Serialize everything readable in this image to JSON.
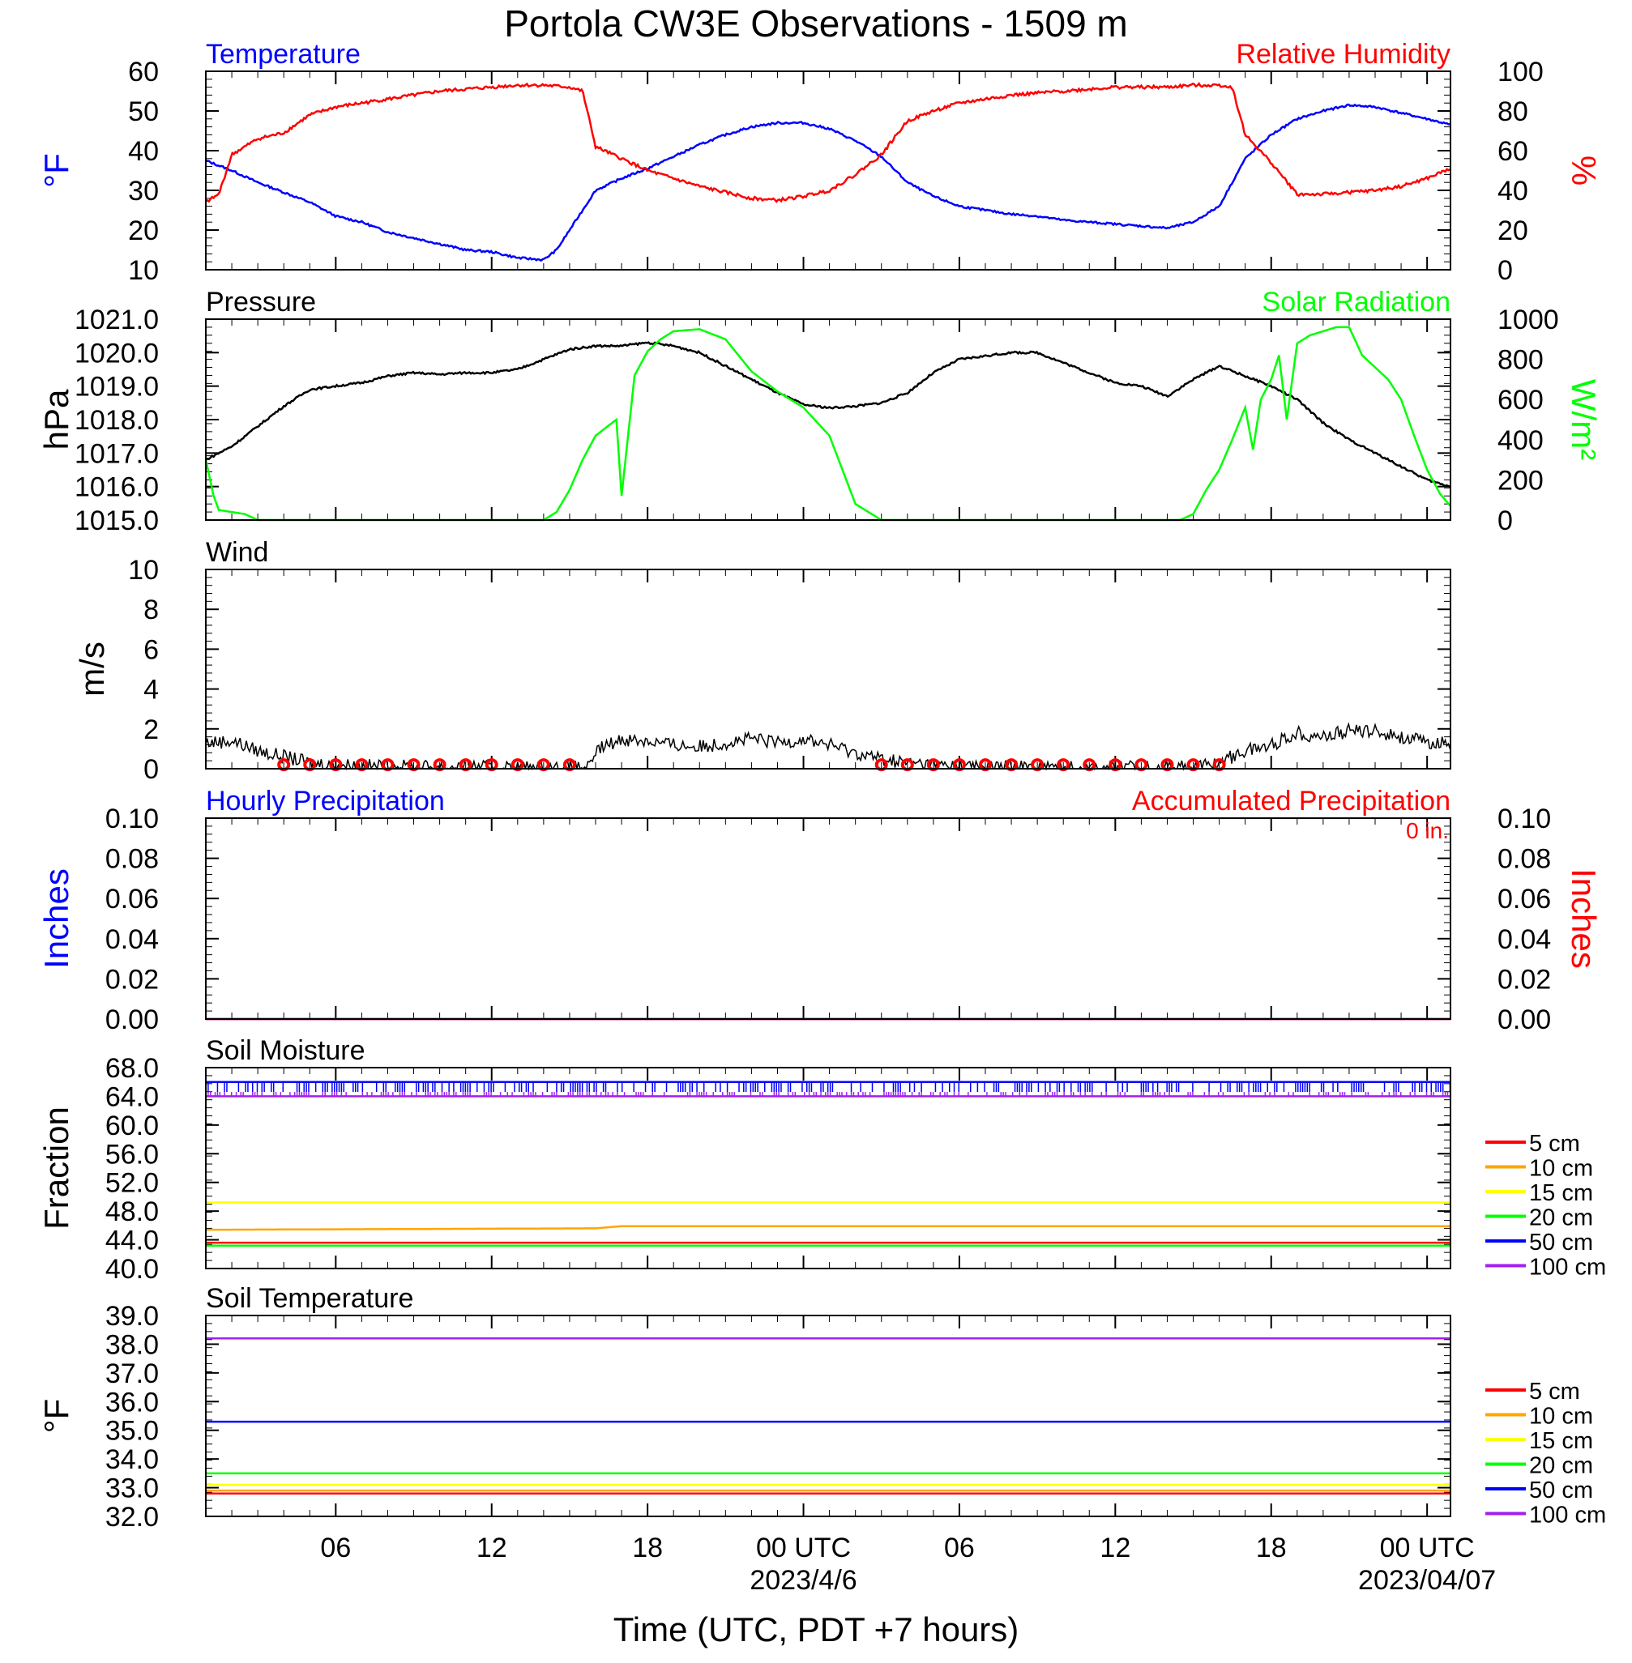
{
  "title": "Portola CW3E Observations - 1509 m",
  "xlabel": "Time (UTC, PDT +7 hours)",
  "x_ticks": [
    {
      "hour": 6,
      "label": "06"
    },
    {
      "hour": 12,
      "label": "12"
    },
    {
      "hour": 18,
      "label": "18"
    },
    {
      "hour": 24,
      "label": "00 UTC",
      "date": "2023/4/6"
    },
    {
      "hour": 30,
      "label": "06"
    },
    {
      "hour": 36,
      "label": "12"
    },
    {
      "hour": 42,
      "label": "18"
    },
    {
      "hour": 48,
      "label": "00 UTC",
      "date": "2023/04/07"
    }
  ],
  "x_range_hours": [
    1,
    48.9
  ],
  "chart_data": [
    {
      "type": "line",
      "panel": "temperature-humidity",
      "left_title": "Temperature",
      "right_title": "Relative Humidity",
      "ylabel_left": "°F",
      "ylabel_right": "%",
      "ylim_left": [
        10,
        60
      ],
      "ylim_right": [
        0,
        100
      ],
      "yticks_left": [
        "10",
        "20",
        "30",
        "40",
        "50",
        "60"
      ],
      "yticks_right": [
        "0",
        "20",
        "40",
        "60",
        "80",
        "100"
      ],
      "series": [
        {
          "name": "Temperature",
          "axis": "left",
          "color": "#0000ff",
          "x": [
            1,
            2,
            3,
            4,
            5,
            6,
            7,
            8,
            9,
            10,
            11,
            12,
            13,
            14,
            14.5,
            15,
            16,
            17,
            18,
            19,
            20,
            21,
            22,
            23,
            24,
            25,
            26,
            27,
            28,
            29,
            30,
            31,
            32,
            33,
            34,
            35,
            36,
            37,
            38,
            39,
            40,
            41,
            42,
            43,
            44,
            45,
            46,
            47,
            48,
            48.9
          ],
          "values": [
            37.5,
            35,
            32,
            29.5,
            27,
            23.5,
            22,
            19.5,
            18,
            16.5,
            15,
            14.5,
            13,
            12.5,
            15,
            20,
            30,
            33,
            35.5,
            38.5,
            41.5,
            44,
            46,
            47,
            47,
            45.5,
            42.5,
            38.5,
            32,
            28.5,
            26,
            25,
            24,
            23.5,
            22.5,
            22,
            21.5,
            21,
            20.5,
            22,
            26,
            38,
            44,
            48,
            50,
            51.5,
            51,
            49.5,
            48,
            46.5
          ]
        },
        {
          "name": "Relative Humidity",
          "axis": "right",
          "color": "#ff0000",
          "x": [
            1,
            1.5,
            2,
            3,
            4,
            5,
            6,
            7,
            8,
            9,
            10,
            11,
            12,
            13,
            14,
            15,
            15.5,
            16,
            17,
            18,
            19,
            20,
            21,
            22,
            23,
            24,
            25,
            26,
            27,
            28,
            29,
            30,
            31,
            32,
            33,
            34,
            35,
            36,
            37,
            38,
            39,
            40,
            40.5,
            41,
            42,
            43,
            44,
            45,
            46,
            47,
            48,
            48.9
          ],
          "values": [
            34,
            38,
            58,
            66,
            69,
            78,
            82,
            84,
            86,
            88,
            90,
            91,
            92,
            93,
            93,
            92,
            90,
            62,
            56,
            50,
            46,
            42,
            39,
            36,
            35,
            37,
            40,
            48,
            58,
            75,
            80,
            84,
            86,
            88,
            89,
            90,
            91,
            92,
            92,
            92,
            93,
            93,
            92,
            68,
            54,
            38,
            38,
            39,
            40,
            42,
            46,
            51
          ]
        }
      ]
    },
    {
      "type": "line",
      "panel": "pressure-solar",
      "left_title": "Pressure",
      "right_title": "Solar Radiation",
      "ylabel_left": "hPa",
      "ylabel_right": "W/m²",
      "ylim_left": [
        1015.0,
        1021.0
      ],
      "ylim_right": [
        0,
        1000
      ],
      "yticks_left": [
        "1015.0",
        "1016.0",
        "1017.0",
        "1018.0",
        "1019.0",
        "1020.0",
        "1021.0"
      ],
      "yticks_right": [
        "0",
        "200",
        "400",
        "600",
        "800",
        "1000"
      ],
      "series": [
        {
          "name": "Pressure",
          "axis": "left",
          "color": "#000000",
          "x": [
            1,
            2,
            3,
            4,
            5,
            6,
            7,
            8,
            9,
            10,
            11,
            12,
            13,
            14,
            15,
            16,
            17,
            18,
            19,
            20,
            21,
            22,
            23,
            24,
            25,
            26,
            27,
            28,
            29,
            30,
            31,
            32,
            33,
            34,
            35,
            36,
            37,
            38,
            39,
            40,
            41,
            42,
            43,
            44,
            45,
            46,
            47,
            48,
            48.9
          ],
          "values": [
            1016.8,
            1017.2,
            1017.8,
            1018.4,
            1018.9,
            1019.0,
            1019.1,
            1019.3,
            1019.4,
            1019.35,
            1019.4,
            1019.4,
            1019.5,
            1019.8,
            1020.1,
            1020.2,
            1020.2,
            1020.3,
            1020.2,
            1020.0,
            1019.6,
            1019.2,
            1018.8,
            1018.45,
            1018.35,
            1018.4,
            1018.5,
            1018.8,
            1019.4,
            1019.8,
            1019.9,
            1020.0,
            1020.0,
            1019.7,
            1019.4,
            1019.1,
            1019.0,
            1018.7,
            1019.2,
            1019.6,
            1019.3,
            1019.0,
            1018.6,
            1017.9,
            1017.4,
            1017.0,
            1016.6,
            1016.2,
            1016.0
          ]
        },
        {
          "name": "Solar Radiation",
          "axis": "right",
          "color": "#00ff00",
          "x": [
            1,
            1.3,
            1.5,
            2,
            2.5,
            3,
            14,
            14.5,
            15,
            15.5,
            16,
            16.8,
            17,
            17.5,
            18,
            18.5,
            19,
            20,
            21,
            21.5,
            22,
            23,
            24,
            25,
            25.5,
            26,
            26.5,
            27,
            38,
            38.5,
            39,
            39.5,
            40,
            40.5,
            41,
            41.3,
            41.6,
            42,
            42.3,
            42.6,
            43,
            43.5,
            44,
            44.5,
            45,
            45.5,
            46,
            46.5,
            47,
            47.5,
            48,
            48.5,
            48.9
          ],
          "values": [
            300,
            120,
            50,
            40,
            30,
            0,
            0,
            40,
            150,
            300,
            420,
            500,
            120,
            720,
            840,
            900,
            940,
            950,
            900,
            820,
            740,
            640,
            560,
            420,
            250,
            80,
            40,
            0,
            0,
            0,
            30,
            150,
            250,
            400,
            560,
            350,
            600,
            700,
            820,
            500,
            880,
            920,
            940,
            960,
            960,
            820,
            760,
            700,
            600,
            420,
            250,
            130,
            70
          ]
        }
      ]
    },
    {
      "type": "line",
      "panel": "wind",
      "left_title": "Wind",
      "ylabel_left": "m/s",
      "ylim_left": [
        0,
        10
      ],
      "yticks_left": [
        "0",
        "2",
        "4",
        "6",
        "8",
        "10"
      ],
      "series": [
        {
          "name": "Wind",
          "axis": "left",
          "color": "#000000",
          "x": [
            1,
            2,
            3,
            4,
            5,
            6,
            7,
            8,
            9,
            10,
            11,
            12,
            13,
            14,
            15,
            15.9,
            16,
            17,
            18,
            19,
            20,
            21,
            22,
            23,
            24,
            25,
            26,
            27,
            28,
            29,
            30,
            31,
            32,
            33,
            34,
            35,
            36,
            37,
            38,
            39,
            40,
            40.5,
            41,
            42,
            43,
            44,
            45,
            46,
            47,
            48,
            48.9
          ],
          "values": [
            1.3,
            1.4,
            0.9,
            0.6,
            0.3,
            0.2,
            0.15,
            0.1,
            0.1,
            0.1,
            0.1,
            0.1,
            0.05,
            0.05,
            0.05,
            0.1,
            0.9,
            1.5,
            1.4,
            1.2,
            1.1,
            1.3,
            1.5,
            1.3,
            1.5,
            1.2,
            0.8,
            0.5,
            0.3,
            0.2,
            0.15,
            0.1,
            0.1,
            0.1,
            0.05,
            0.05,
            0.05,
            0.05,
            0.05,
            0.1,
            0.3,
            0.6,
            0.9,
            1.2,
            1.8,
            1.6,
            1.9,
            1.9,
            1.6,
            1.3,
            1.3
          ]
        }
      ]
    },
    {
      "type": "line",
      "panel": "precipitation",
      "left_title": "Hourly Precipitation",
      "right_title": "Accumulated Precipitation",
      "total_label": "0 in.",
      "ylabel_left": "Inches",
      "ylabel_right": "Inches",
      "ylim_left": [
        0,
        0.1
      ],
      "ylim_right": [
        0,
        0.1
      ],
      "yticks_left": [
        "0.00",
        "0.02",
        "0.04",
        "0.06",
        "0.08",
        "0.10"
      ],
      "yticks_right": [
        "0.00",
        "0.02",
        "0.04",
        "0.06",
        "0.08",
        "0.10"
      ],
      "series": [
        {
          "name": "Hourly Precipitation",
          "axis": "left",
          "color": "#0000ff",
          "x": [
            1,
            48.9
          ],
          "values": [
            0,
            0
          ]
        },
        {
          "name": "Accumulated Precipitation",
          "axis": "right",
          "color": "#ff0000",
          "x": [
            1,
            48.9
          ],
          "values": [
            0,
            0
          ]
        }
      ]
    },
    {
      "type": "line",
      "panel": "soil-moisture",
      "left_title": "Soil Moisture",
      "ylabel_left": "Fraction",
      "ylim_left": [
        40.0,
        68.0
      ],
      "yticks_left": [
        "40.0",
        "44.0",
        "48.0",
        "52.0",
        "56.0",
        "60.0",
        "64.0",
        "68.0"
      ],
      "legend": [
        "5 cm",
        "10 cm",
        "15 cm",
        "20 cm",
        "50 cm",
        "100 cm"
      ],
      "legend_colors": [
        "#ff0000",
        "#ffa500",
        "#ffff00",
        "#00ff00",
        "#0000ff",
        "#a020f0"
      ],
      "series": [
        {
          "name": "5 cm",
          "color": "#ff0000",
          "x": [
            1,
            48.9
          ],
          "values": [
            43.6,
            43.6
          ]
        },
        {
          "name": "10 cm",
          "color": "#ffa500",
          "x": [
            1,
            16,
            17,
            48.9
          ],
          "values": [
            45.4,
            45.6,
            45.9,
            45.9
          ]
        },
        {
          "name": "15 cm",
          "color": "#ffff00",
          "x": [
            1,
            48.9
          ],
          "values": [
            49.2,
            49.2
          ]
        },
        {
          "name": "20 cm",
          "color": "#00ff00",
          "x": [
            1,
            48.9
          ],
          "values": [
            43.2,
            43.2
          ]
        },
        {
          "name": "50 cm",
          "color": "#0000ff",
          "x": [
            1,
            48.9
          ],
          "values": [
            66.0,
            66.0
          ],
          "fluctuates_to": 64.6
        },
        {
          "name": "100 cm",
          "color": "#a020f0",
          "x": [
            1,
            48.9
          ],
          "values": [
            64.0,
            64.0
          ],
          "fluctuates_to": 64.6
        }
      ]
    },
    {
      "type": "line",
      "panel": "soil-temperature",
      "left_title": "Soil Temperature",
      "ylabel_left": "°F",
      "ylim_left": [
        32.0,
        39.0
      ],
      "yticks_left": [
        "32.0",
        "33.0",
        "34.0",
        "35.0",
        "36.0",
        "37.0",
        "38.0",
        "39.0"
      ],
      "legend": [
        "5 cm",
        "10 cm",
        "15 cm",
        "20 cm",
        "50 cm",
        "100 cm"
      ],
      "legend_colors": [
        "#ff0000",
        "#ffa500",
        "#ffff00",
        "#00ff00",
        "#0000ff",
        "#a020f0"
      ],
      "series": [
        {
          "name": "5 cm",
          "color": "#ff0000",
          "x": [
            1,
            48.9
          ],
          "values": [
            32.8,
            32.8
          ]
        },
        {
          "name": "10 cm",
          "color": "#ffa500",
          "x": [
            1,
            48.9
          ],
          "values": [
            32.9,
            32.9
          ]
        },
        {
          "name": "15 cm",
          "color": "#ffff00",
          "x": [
            1,
            48.9
          ],
          "values": [
            33.1,
            33.1
          ]
        },
        {
          "name": "20 cm",
          "color": "#00ff00",
          "x": [
            1,
            48.9
          ],
          "values": [
            33.5,
            33.5
          ]
        },
        {
          "name": "50 cm",
          "color": "#0000ff",
          "x": [
            1,
            48.9
          ],
          "values": [
            35.3,
            35.3
          ]
        },
        {
          "name": "100 cm",
          "color": "#a020f0",
          "x": [
            1,
            48.9
          ],
          "values": [
            38.2,
            38.2
          ]
        }
      ]
    }
  ],
  "wind_vectors": {
    "color": "#ff0000",
    "calm_hours": [
      4,
      5,
      6,
      7,
      8,
      9,
      10,
      11,
      12,
      13,
      14,
      15,
      27,
      28,
      29,
      30,
      31,
      32,
      33,
      34,
      35,
      36,
      37,
      38,
      39,
      40
    ]
  }
}
